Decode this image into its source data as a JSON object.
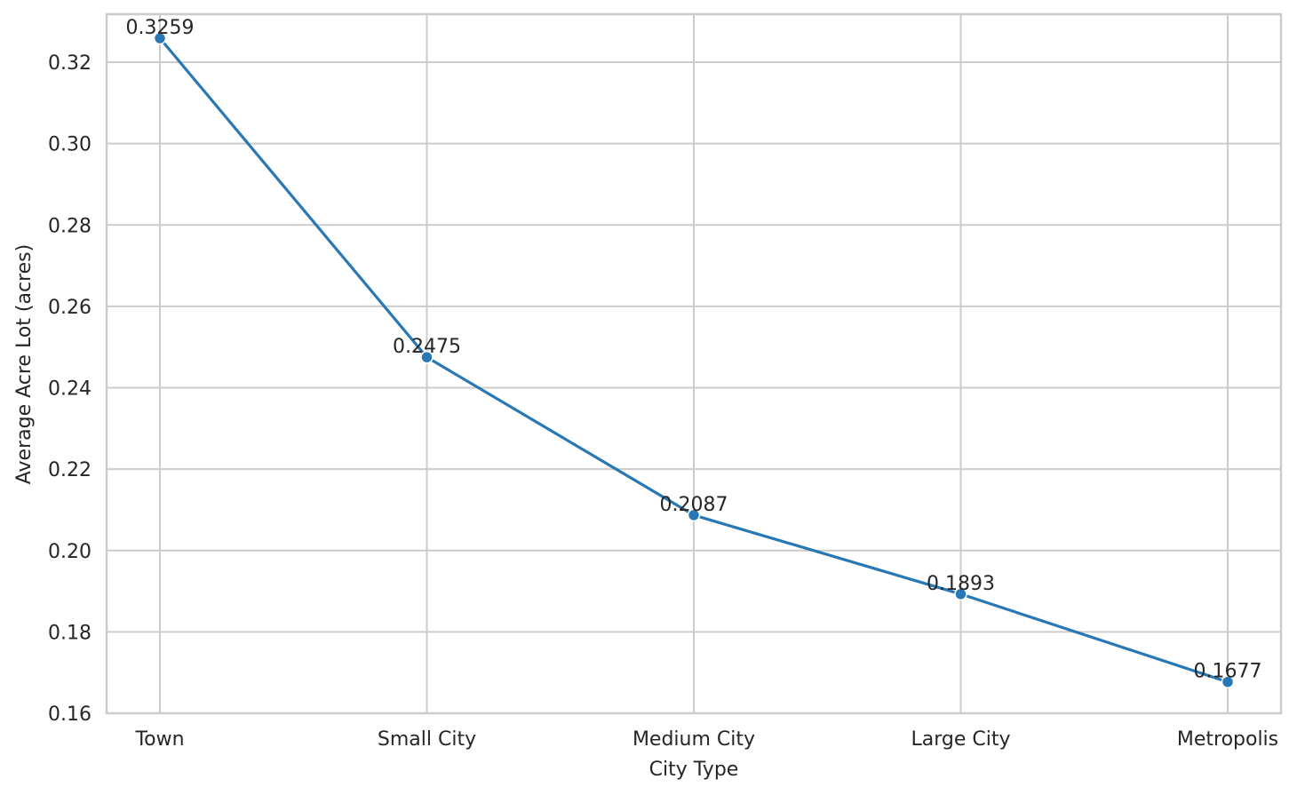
{
  "chart_data": {
    "type": "line",
    "title": "",
    "xlabel": "City Type",
    "ylabel": "Average Acre Lot (acres)",
    "categories": [
      "Town",
      "Small City",
      "Medium City",
      "Large City",
      "Metropolis"
    ],
    "series": [
      {
        "values": [
          0.3259,
          0.2475,
          0.2087,
          0.1893,
          0.1677
        ],
        "data_labels": [
          "0.3259",
          "0.2475",
          "0.2087",
          "0.1893",
          "0.1677"
        ],
        "color": "#2878b5",
        "marker": "circle"
      }
    ],
    "ylim": [
      0.16,
      0.3318
    ],
    "yticks": [
      0.16,
      0.18,
      0.2,
      0.22,
      0.24,
      0.26,
      0.28,
      0.3,
      0.32
    ],
    "ytick_labels": [
      "0.16",
      "0.18",
      "0.20",
      "0.22",
      "0.24",
      "0.26",
      "0.28",
      "0.30",
      "0.32"
    ],
    "grid": true,
    "legend": "none",
    "style": {
      "grid_color": "#cccccc",
      "text_color": "#262626",
      "background": "#ffffff"
    }
  }
}
